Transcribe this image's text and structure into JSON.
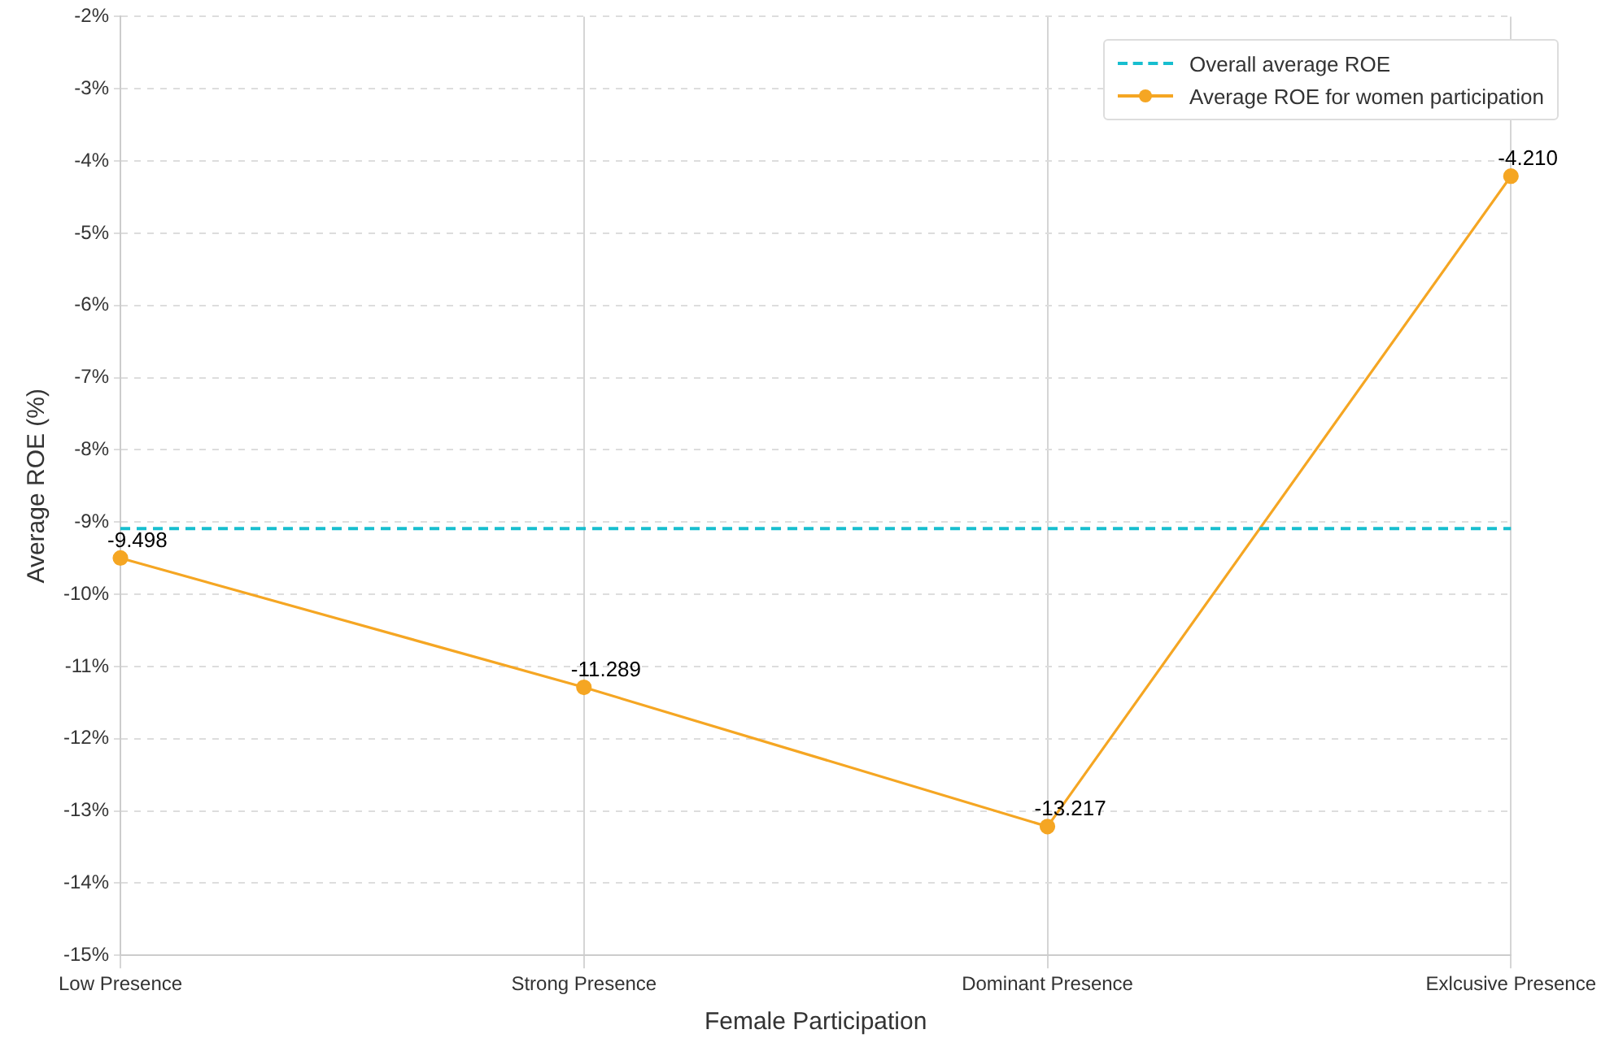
{
  "chart_data": {
    "type": "line",
    "xlabel": "Female Participation",
    "ylabel": "Average ROE (%)",
    "categories": [
      "Low Presence",
      "Strong Presence",
      "Dominant Presence",
      "Exlcusive Presence"
    ],
    "series": [
      {
        "name": "Average ROE for women participation",
        "color": "#f5a623",
        "values": [
          -9.498,
          -11.289,
          -13.217,
          -4.21
        ],
        "value_labels": [
          "-9.498",
          "-11.289",
          "-13.217",
          "-4.210"
        ]
      }
    ],
    "ref_lines": [
      {
        "axis": "y",
        "value": -9.09,
        "label": "Overall average ROE",
        "color": "#17becf",
        "line_style": "dashed"
      }
    ],
    "ylim": [
      -15,
      -2
    ],
    "yticks": [
      {
        "value": -15,
        "label": "-15%"
      },
      {
        "value": -14,
        "label": "-14%"
      },
      {
        "value": -13,
        "label": "-13%"
      },
      {
        "value": -12,
        "label": "-12%"
      },
      {
        "value": -11,
        "label": "-11%"
      },
      {
        "value": -10,
        "label": "-10%"
      },
      {
        "value": -9,
        "label": "-9%"
      },
      {
        "value": -8,
        "label": "-8%"
      },
      {
        "value": -7,
        "label": "-7%"
      },
      {
        "value": -6,
        "label": "-6%"
      },
      {
        "value": -5,
        "label": "-5%"
      },
      {
        "value": -4,
        "label": "-4%"
      },
      {
        "value": -3,
        "label": "-3%"
      },
      {
        "value": -2,
        "label": "-2%"
      }
    ],
    "grid": true,
    "legend": "top right",
    "marker": "circle",
    "line_style": "solid"
  }
}
